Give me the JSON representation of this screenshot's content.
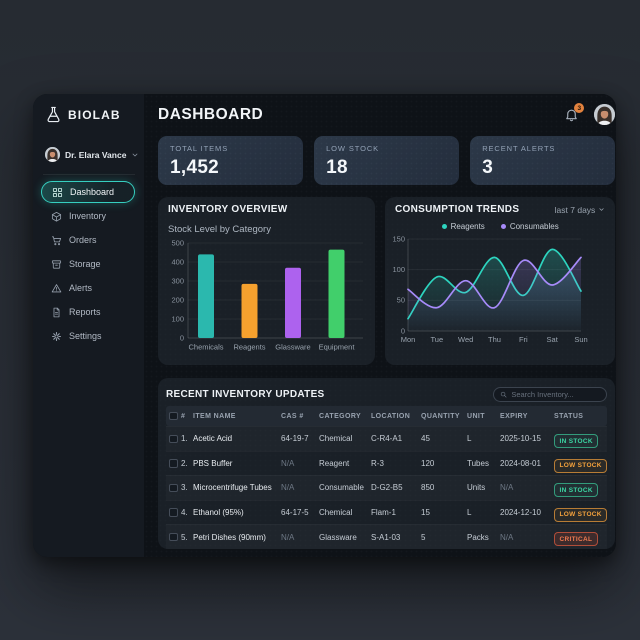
{
  "app": {
    "brand": "BIOLAB",
    "user": {
      "name": "Dr. Elara Vance"
    },
    "nav": [
      {
        "label": "Dashboard",
        "active": true
      },
      {
        "label": "Inventory",
        "active": false
      },
      {
        "label": "Orders",
        "active": false
      },
      {
        "label": "Storage",
        "active": false
      },
      {
        "label": "Alerts",
        "active": false
      },
      {
        "label": "Reports",
        "active": false
      },
      {
        "label": "Settings",
        "active": false
      }
    ]
  },
  "header": {
    "title": "DASHBOARD",
    "notification_count": "3"
  },
  "stats": [
    {
      "label": "TOTAL ITEMS",
      "value": "1,452"
    },
    {
      "label": "LOW STOCK",
      "value": "18"
    },
    {
      "label": "RECENT ALERTS",
      "value": "3"
    }
  ],
  "chart_data": [
    {
      "type": "bar",
      "title": "INVENTORY OVERVIEW",
      "subtitle": "Stock Level by Category",
      "categories": [
        "Chemicals",
        "Reagents",
        "Glassware",
        "Equipment"
      ],
      "values": [
        440,
        285,
        370,
        465
      ],
      "colors": [
        "#2bb8ae",
        "#f6a12e",
        "#ad62ee",
        "#41cf6b"
      ],
      "ylim": [
        0,
        500
      ],
      "yticks": [
        0,
        100,
        200,
        300,
        400,
        500
      ]
    },
    {
      "type": "line",
      "title": "CONSUMPTION TRENDS",
      "range_label": "last 7 days",
      "x": [
        "Mon",
        "Tue",
        "Wed",
        "Thu",
        "Fri",
        "Sat",
        "Sun"
      ],
      "series": [
        {
          "name": "Reagents",
          "color": "#2dd4bf",
          "values": [
            20,
            88,
            63,
            120,
            58,
            133,
            65
          ]
        },
        {
          "name": "Consumables",
          "color": "#a78bfa",
          "values": [
            68,
            38,
            82,
            38,
            115,
            75,
            120
          ]
        }
      ],
      "ylim": [
        0,
        150
      ],
      "yticks": [
        0,
        50,
        100,
        150
      ]
    }
  ],
  "table": {
    "title": "RECENT INVENTORY UPDATES",
    "search_placeholder": "Search Inventory...",
    "columns": [
      "#",
      "ITEM NAME",
      "CAS #",
      "CATEGORY",
      "LOCATION",
      "QUANTITY",
      "UNIT",
      "EXPIRY",
      "STATUS"
    ],
    "rows": [
      {
        "num": "1.",
        "name": "Acetic Acid",
        "cas": "64-19-7",
        "category": "Chemical",
        "location": "C-R4-A1",
        "qty": "45",
        "unit": "L",
        "expiry": "2025-10-15",
        "status": "IN STOCK",
        "status_type": "in-stock"
      },
      {
        "num": "2.",
        "name": "PBS Buffer",
        "cas": "N/A",
        "category": "Reagent",
        "location": "R-3",
        "qty": "120",
        "unit": "Tubes",
        "expiry": "2024-08-01",
        "status": "LOW STOCK",
        "status_type": "low-stock"
      },
      {
        "num": "3.",
        "name": "Microcentrifuge Tubes",
        "cas": "N/A",
        "category": "Consumable",
        "location": "D-G2-B5",
        "qty": "850",
        "unit": "Units",
        "expiry": "N/A",
        "status": "IN STOCK",
        "status_type": "in-stock"
      },
      {
        "num": "4.",
        "name": "Ethanol (95%)",
        "cas": "64-17-5",
        "category": "Chemical",
        "location": "Flam-1",
        "qty": "15",
        "unit": "L",
        "expiry": "2024-12-10",
        "status": "LOW STOCK",
        "status_type": "low-stock"
      },
      {
        "num": "5.",
        "name": "Petri Dishes (90mm)",
        "cas": "N/A",
        "category": "Glassware",
        "location": "S-A1-03",
        "qty": "5",
        "unit": "Packs",
        "expiry": "N/A",
        "status": "CRITICAL",
        "status_type": "critical"
      }
    ]
  },
  "colors": {
    "accent": "#2dd4bf",
    "warning": "#f59e0b",
    "critical": "#e4572e"
  }
}
